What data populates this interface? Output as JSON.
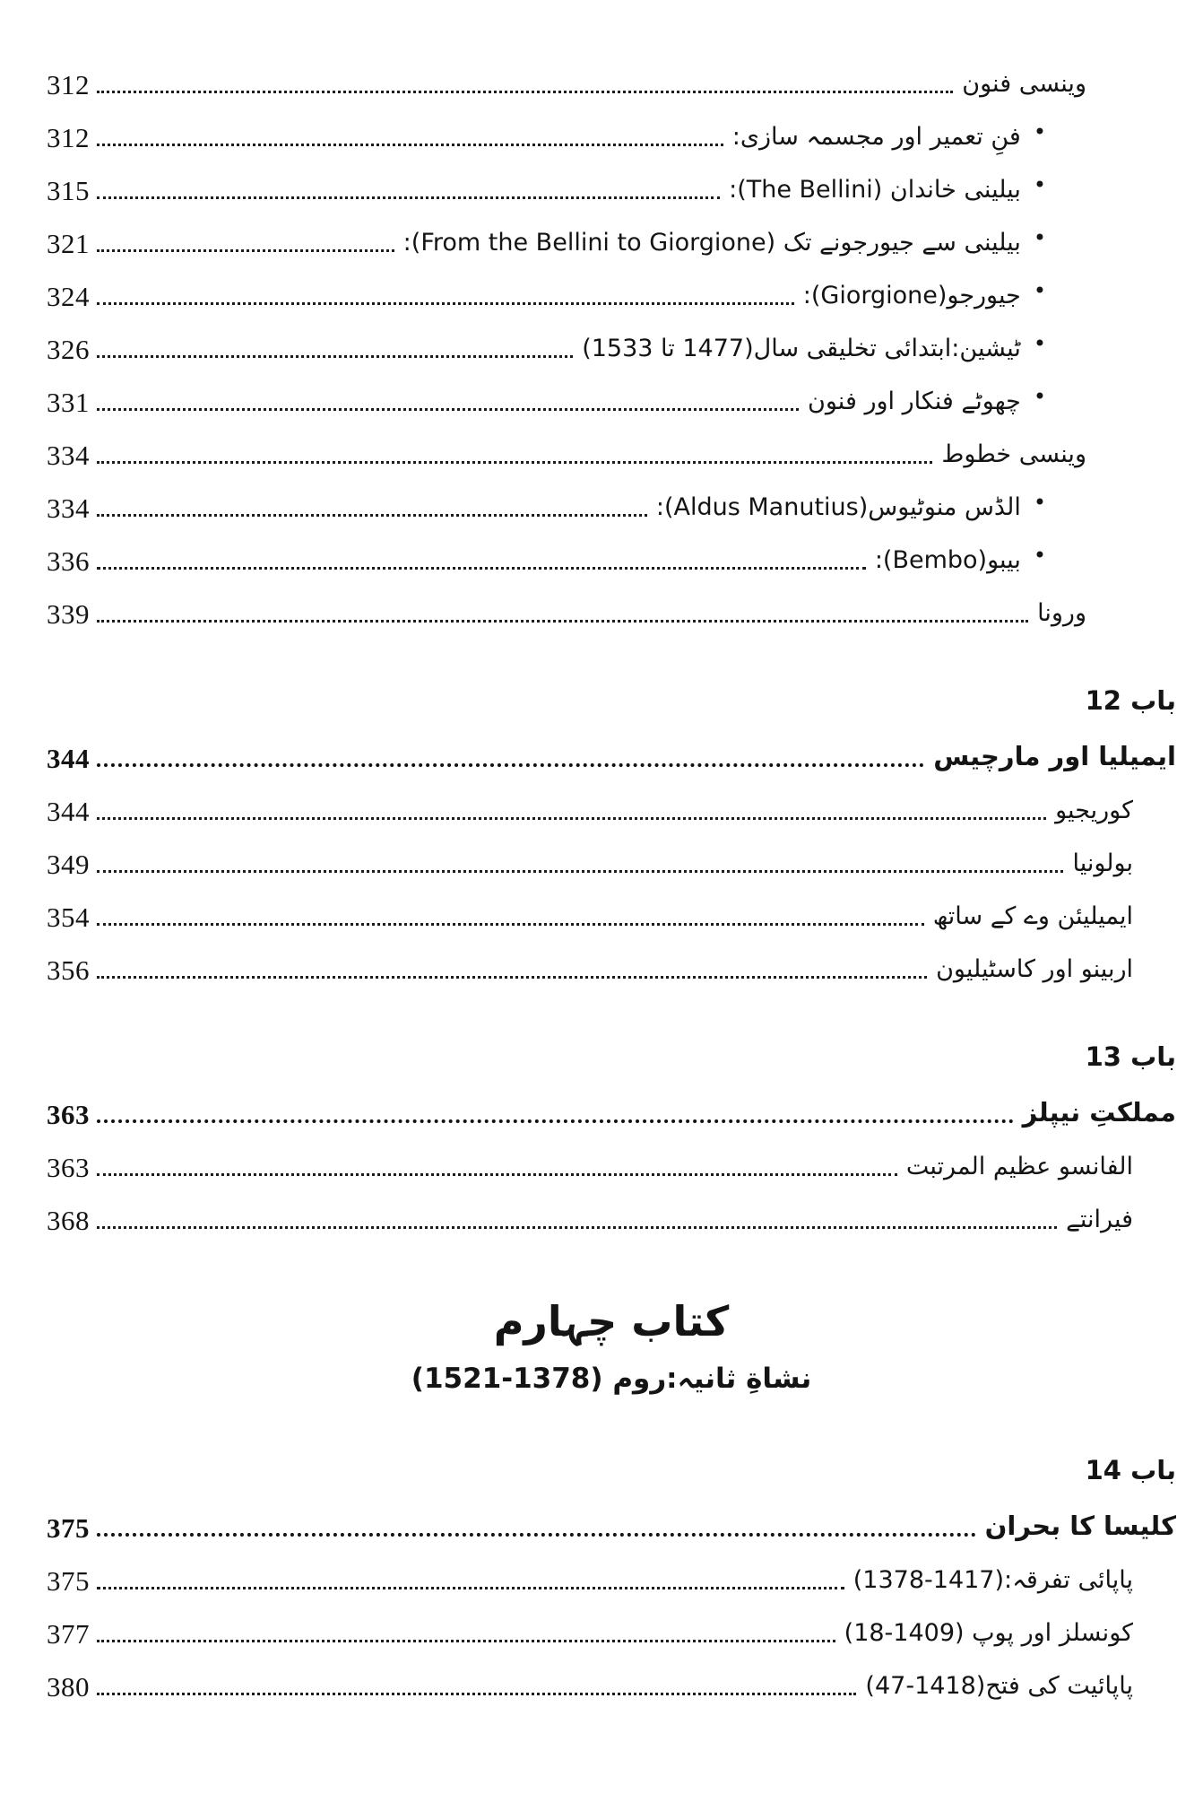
{
  "colors": {
    "background": "#ffffff",
    "text": "#141414"
  },
  "bullet_glyph": "•",
  "toc": {
    "blocks": [
      {
        "type": "rows",
        "rows": [
          {
            "title": "وینسی فنون",
            "page": "312",
            "level": "top"
          },
          {
            "title": "فنِ تعمیر اور مجسمہ سازی:",
            "page": "312",
            "level": "bullet"
          },
          {
            "title": "بیلینی خاندان (The Bellini):",
            "page": "315",
            "level": "bullet"
          },
          {
            "title": "بیلینی سے جیورجونے تک (From the Bellini to Giorgione):",
            "page": "321",
            "level": "bullet"
          },
          {
            "title": "جیورجو(Giorgione):",
            "page": "324",
            "level": "bullet"
          },
          {
            "title": "ٹیشین:ابتدائی تخلیقی سال(1477 تا 1533)",
            "page": "326",
            "level": "bullet"
          },
          {
            "title": "چھوٹے فنکار اور فنون",
            "page": "331",
            "level": "bullet"
          },
          {
            "title": "وینسی خطوط",
            "page": "334",
            "level": "top"
          },
          {
            "title": "الڈس منوٹیوس(Aldus Manutius):",
            "page": "334",
            "level": "bullet"
          },
          {
            "title": "بیبو(Bembo):",
            "page": "336",
            "level": "bullet"
          },
          {
            "title": "ورونا",
            "page": "339",
            "level": "top"
          }
        ]
      },
      {
        "type": "chapter",
        "label": "باب 12",
        "rows": [
          {
            "title": "ایمیلیا اور مارچیس",
            "page": "344",
            "level": "chapter-title",
            "bold": true
          },
          {
            "title": "کوریجیو",
            "page": "344",
            "level": "sub"
          },
          {
            "title": "بولونیا",
            "page": "349",
            "level": "sub"
          },
          {
            "title": "ایمیلیئن وے کے ساتھ",
            "page": "354",
            "level": "sub"
          },
          {
            "title": "اربینو اور کاسٹیلیون",
            "page": "356",
            "level": "sub"
          }
        ]
      },
      {
        "type": "chapter",
        "label": "باب 13",
        "rows": [
          {
            "title": "مملکتِ نیپلز",
            "page": "363",
            "level": "chapter-title",
            "bold": true
          },
          {
            "title": "الفانسو عظیم المرتبت",
            "page": "363",
            "level": "sub"
          },
          {
            "title": "فیرانتے",
            "page": "368",
            "level": "sub"
          }
        ]
      },
      {
        "type": "book",
        "title": "کتاب چہارم",
        "subtitle": "نشاةِ ثانیہ:روم (1378-1521)"
      },
      {
        "type": "chapter",
        "label": "باب 14",
        "rows": [
          {
            "title": "کلیسا کا بحران",
            "page": "375",
            "level": "chapter-title",
            "bold": true
          },
          {
            "title": "پاپائی تفرقہ:(1417-1378)",
            "page": "375",
            "level": "sub"
          },
          {
            "title": "کونسلز اور پوپ (1409-18)",
            "page": "377",
            "level": "sub"
          },
          {
            "title": "پاپائیت کی فتح(1418-47)",
            "page": "380",
            "level": "sub"
          }
        ]
      }
    ]
  }
}
